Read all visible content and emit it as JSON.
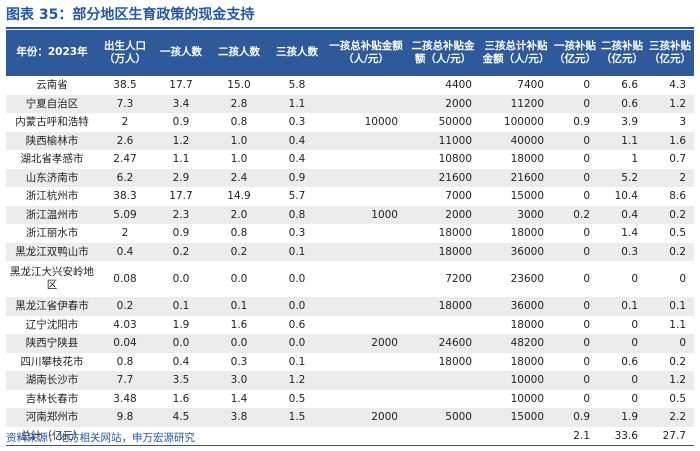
{
  "title": "图表 35：部分地区生育政策的现金支持",
  "source": "资料来源：地方相关网站，申万宏源研究",
  "columns": [
    "年份：2023年",
    "出生人口（万人）",
    "一孩人数",
    "二孩人数",
    "三孩人数",
    "一孩总补贴金额（人/元）",
    "二孩总补贴金额（人/元）",
    "三孩总计补贴金额（人/元）",
    "一孩补贴（亿元）",
    "二孩补贴（亿元）",
    "三孩补贴（亿元）"
  ],
  "rows": [
    {
      "region": "云南省",
      "cells": [
        "38.5",
        "17.7",
        "15.0",
        "5.8",
        "",
        "4400",
        "7400",
        "0",
        "6.6",
        "4.3"
      ]
    },
    {
      "region": "宁夏自治区",
      "cells": [
        "7.3",
        "3.4",
        "2.8",
        "1.1",
        "",
        "2000",
        "11200",
        "0",
        "0.6",
        "1.2"
      ]
    },
    {
      "region": "内蒙古呼和浩特",
      "cells": [
        "2",
        "0.9",
        "0.8",
        "0.3",
        "10000",
        "50000",
        "100000",
        "0.9",
        "3.9",
        "3"
      ]
    },
    {
      "region": "陕西榆林市",
      "cells": [
        "2.6",
        "1.2",
        "1.0",
        "0.4",
        "",
        "11000",
        "40000",
        "0",
        "1.1",
        "1.6"
      ]
    },
    {
      "region": "湖北省孝感市",
      "cells": [
        "2.47",
        "1.1",
        "1.0",
        "0.4",
        "",
        "10800",
        "18000",
        "0",
        "1",
        "0.7"
      ]
    },
    {
      "region": "山东济南市",
      "cells": [
        "6.2",
        "2.9",
        "2.4",
        "0.9",
        "",
        "21600",
        "21600",
        "0",
        "5.2",
        "2"
      ]
    },
    {
      "region": "浙江杭州市",
      "cells": [
        "38.3",
        "17.7",
        "14.9",
        "5.7",
        "",
        "7000",
        "15000",
        "0",
        "10.4",
        "8.6"
      ]
    },
    {
      "region": "浙江温州市",
      "cells": [
        "5.09",
        "2.3",
        "2.0",
        "0.8",
        "1000",
        "2000",
        "3000",
        "0.2",
        "0.4",
        "0.2"
      ]
    },
    {
      "region": "浙江丽水市",
      "cells": [
        "2",
        "0.9",
        "0.8",
        "0.3",
        "",
        "18000",
        "18000",
        "0",
        "1.4",
        "0.5"
      ]
    },
    {
      "region": "黑龙江双鸭山市",
      "cells": [
        "0.4",
        "0.2",
        "0.2",
        "0.1",
        "",
        "18000",
        "36000",
        "0",
        "0.3",
        "0.2"
      ]
    },
    {
      "region": "黑龙江大兴安岭地区",
      "cells": [
        "0.08",
        "0.0",
        "0.0",
        "0.0",
        "",
        "7200",
        "23600",
        "0",
        "0",
        "0"
      ]
    },
    {
      "region": "黑龙江省伊春市",
      "cells": [
        "0.2",
        "0.1",
        "0.1",
        "0.0",
        "",
        "18000",
        "36000",
        "0",
        "0.1",
        "0.1"
      ]
    },
    {
      "region": "辽宁沈阳市",
      "cells": [
        "4.03",
        "1.9",
        "1.6",
        "0.6",
        "",
        "",
        "18000",
        "0",
        "0",
        "1.1"
      ]
    },
    {
      "region": "陕西宁陕县",
      "cells": [
        "0.04",
        "0.0",
        "0.0",
        "0.0",
        "2000",
        "24600",
        "48200",
        "0",
        "0",
        "0"
      ]
    },
    {
      "region": "四川攀枝花市",
      "cells": [
        "0.8",
        "0.4",
        "0.3",
        "0.1",
        "",
        "18000",
        "18000",
        "0",
        "0.6",
        "0.2"
      ]
    },
    {
      "region": "湖南长沙市",
      "cells": [
        "7.7",
        "3.5",
        "3.0",
        "1.2",
        "",
        "",
        "10000",
        "0",
        "0",
        "1.2"
      ]
    },
    {
      "region": "吉林长春市",
      "cells": [
        "3.48",
        "1.6",
        "1.4",
        "0.5",
        "",
        "",
        "10000",
        "0",
        "0",
        "0.5"
      ]
    },
    {
      "region": "河南郑州市",
      "cells": [
        "9.8",
        "4.5",
        "3.8",
        "1.5",
        "2000",
        "5000",
        "15000",
        "0.9",
        "1.9",
        "2.2"
      ]
    }
  ],
  "total": {
    "label": "总计（亿元）",
    "cells": [
      "",
      "",
      "",
      "",
      "",
      "",
      "",
      "2.1",
      "33.6",
      "27.7"
    ]
  }
}
